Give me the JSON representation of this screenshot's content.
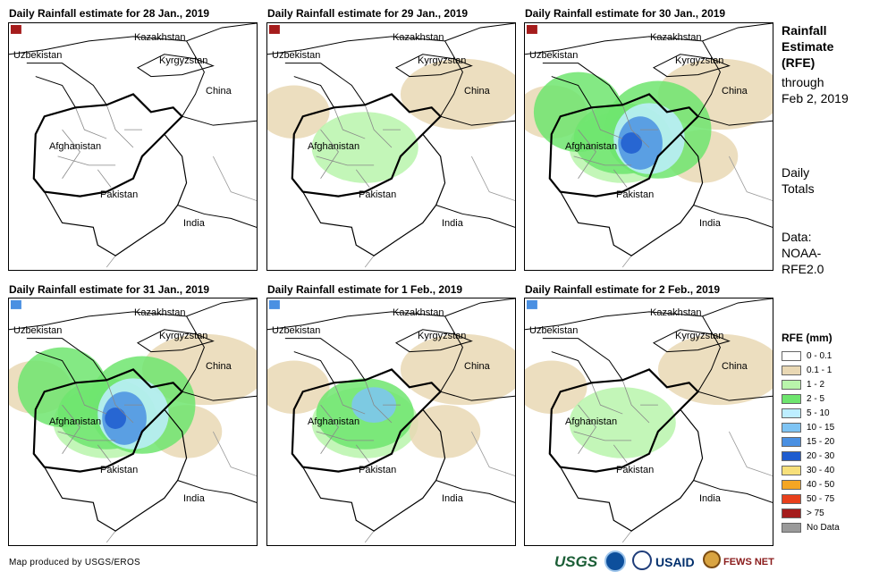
{
  "panels": [
    {
      "title": "Daily Rainfall estimate for 28 Jan., 2019",
      "intensity": 0
    },
    {
      "title": "Daily Rainfall estimate for 29 Jan., 2019",
      "intensity": 1
    },
    {
      "title": "Daily Rainfall estimate for 30 Jan., 2019",
      "intensity": 3
    },
    {
      "title": "Daily Rainfall estimate for 31 Jan., 2019",
      "intensity": 3
    },
    {
      "title": "Daily Rainfall estimate for 1 Feb., 2019",
      "intensity": 2
    },
    {
      "title": "Daily Rainfall estimate for 2 Feb., 2019",
      "intensity": 1
    }
  ],
  "countries": {
    "kazakhstan": "Kazakhstan",
    "uzbekistan": "Uzbekistan",
    "kyrgyzstan": "Kyrgyzstan",
    "china": "China",
    "afghanistan": "Afghanistan",
    "pakistan": "Pakistan",
    "india": "India"
  },
  "sidebar": {
    "title_lines": [
      "Rainfall",
      "Estimate",
      "(RFE)"
    ],
    "through_lines": [
      "through",
      "Feb 2, 2019"
    ],
    "daily_lines": [
      "Daily",
      "Totals"
    ],
    "data_lines": [
      "Data:",
      "NOAA-",
      "RFE2.0"
    ]
  },
  "legend": {
    "title": "RFE (mm)",
    "items": [
      {
        "label": "0 - 0.1",
        "color": "#ffffff"
      },
      {
        "label": "0.1 - 1",
        "color": "#e9d8b4"
      },
      {
        "label": "1 - 2",
        "color": "#b9f5ab"
      },
      {
        "label": "2 - 5",
        "color": "#6ee56e"
      },
      {
        "label": "5 - 10",
        "color": "#bdeeff"
      },
      {
        "label": "10 - 15",
        "color": "#7ec4f4"
      },
      {
        "label": "15 - 20",
        "color": "#4a90e2"
      },
      {
        "label": "20 - 30",
        "color": "#1f5ccf"
      },
      {
        "label": "30 - 40",
        "color": "#f7e07a"
      },
      {
        "label": "40 - 50",
        "color": "#f5a623"
      },
      {
        "label": "50 - 75",
        "color": "#e8401c"
      },
      {
        "label": "> 75",
        "color": "#a51c1c"
      },
      {
        "label": "No Data",
        "color": "#9a9a9a"
      }
    ]
  },
  "credit": "Map produced by USGS/EROS",
  "logos": {
    "usgs": "USGS",
    "usaid": "USAID",
    "fews": "FEWS NET"
  }
}
